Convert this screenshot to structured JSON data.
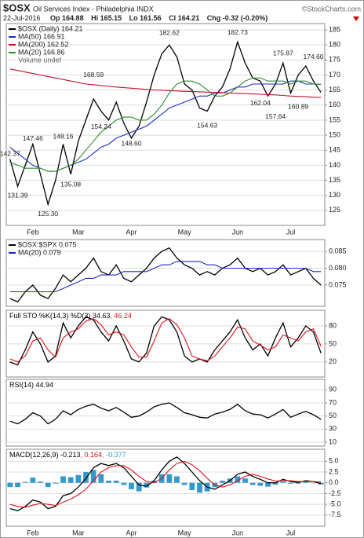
{
  "header": {
    "symbol": "$OSX",
    "name": "Oil Services Index - Philadelphia INDX",
    "source": "©StockCharts.com",
    "date": "22-Jul-2016",
    "quote": [
      "Op 164.88",
      "Hi 165.15",
      "Lo 161.56",
      "Cl 164.21",
      "Chg -0.32 (-0.20%)"
    ]
  },
  "chart_data": [
    {
      "type": "line",
      "legend": "stacked",
      "grid": true,
      "volume_label": "Volume undef",
      "categories": [
        null,
        null,
        null,
        "Feb",
        null,
        null,
        null,
        null,
        null,
        "Mar",
        null,
        null,
        null,
        null,
        null,
        null,
        "Apr",
        null,
        null,
        null,
        null,
        null,
        null,
        "May",
        null,
        null,
        null,
        null,
        null,
        null,
        "Jun",
        null,
        null,
        null,
        null,
        null,
        null,
        "Jul",
        null,
        null,
        null,
        null
      ],
      "ylim": [
        120,
        187.1
      ],
      "yticks": [
        125,
        130,
        135,
        140,
        145,
        150,
        155,
        160,
        165,
        170,
        175,
        180,
        185
      ],
      "series": [
        {
          "name": "$OSX (Daily) 164.21",
          "color": "#000000",
          "values": [
            142,
            133,
            140,
            147,
            137,
            127,
            135,
            147,
            137,
            148,
            155,
            162,
            158,
            155,
            161,
            154,
            149,
            153,
            161,
            170,
            177,
            180,
            176,
            167,
            165,
            159,
            158,
            163,
            166,
            172,
            181,
            174,
            169,
            168,
            163,
            167,
            174,
            164,
            170,
            173,
            168,
            164.21
          ]
        },
        {
          "name": "MA(50) 166.91",
          "color": "#1a2fb5",
          "values": [
            146,
            144,
            142,
            140,
            139,
            138,
            138,
            139,
            140,
            141,
            142,
            144,
            146,
            147,
            149,
            150,
            151,
            152,
            153,
            155,
            157,
            159,
            160,
            161,
            162,
            163,
            163,
            164,
            164,
            165,
            166,
            166,
            167,
            167,
            167,
            167,
            167,
            168,
            168,
            167,
            167,
            166.91
          ]
        },
        {
          "name": "MA(200) 162.52",
          "color": "#c0102a",
          "values": [
            172,
            171.5,
            171,
            170.5,
            170,
            169.5,
            169,
            168.5,
            168,
            167.5,
            167,
            166.8,
            166.5,
            166.2,
            166,
            165.8,
            165.6,
            165.4,
            165.2,
            165,
            164.9,
            164.8,
            164.7,
            164.6,
            164.5,
            164.4,
            164.3,
            164.2,
            164.1,
            164,
            163.9,
            163.8,
            163.7,
            163.6,
            163.5,
            163.4,
            163.2,
            163,
            162.9,
            162.8,
            162.6,
            162.52
          ]
        },
        {
          "name": "MA(20) 166.86",
          "color": "#2e8b2e",
          "values": [
            141,
            140,
            139,
            139,
            139,
            138,
            138,
            139,
            140,
            142,
            145,
            148,
            151,
            153,
            155,
            156,
            156,
            155,
            155,
            157,
            160,
            164,
            167,
            168,
            168,
            167,
            165,
            163,
            163,
            164,
            166,
            168,
            169,
            169,
            168,
            168,
            168,
            167,
            168,
            168,
            167,
            166.86
          ]
        }
      ],
      "annotations": [
        {
          "value": 142.37,
          "label": "142.37"
        },
        {
          "value": 131.39,
          "label": "131.39"
        },
        {
          "value": 147.46,
          "label": "147.46"
        },
        {
          "value": 125.3,
          "label": "125.30"
        },
        {
          "value": 148.16,
          "label": "148.16"
        },
        {
          "value": 135.08,
          "label": "135.08"
        },
        {
          "value": 168.59,
          "label": "168.59"
        },
        {
          "value": 154.24,
          "label": "154.24"
        },
        {
          "value": 148.6,
          "label": "148.60"
        },
        {
          "value": 182.62,
          "label": "182.62"
        },
        {
          "value": 154.63,
          "label": "154.63"
        },
        {
          "value": 182.73,
          "label": "182.73"
        },
        {
          "value": 175.87,
          "label": "175.87"
        },
        {
          "value": 162.04,
          "label": "162.04"
        },
        {
          "value": 157.64,
          "label": "157.64"
        },
        {
          "value": 160.89,
          "label": "160.89"
        },
        {
          "value": 174.6,
          "label": "174.60"
        }
      ]
    },
    {
      "type": "line",
      "legend": "stacked",
      "grid": true,
      "ylim": [
        0.0687,
        0.0885
      ],
      "yticks": [
        {
          "value": 0.085,
          "label": "0.085"
        },
        {
          "value": 0.08,
          "label": "0.080"
        },
        {
          "value": 0.075,
          "label": "0.075"
        }
      ],
      "series": [
        {
          "name": "$OSX:$SPX 0.075",
          "color": "#000000",
          "values": [
            0.071,
            0.07,
            0.073,
            0.075,
            0.072,
            0.071,
            0.074,
            0.078,
            0.076,
            0.078,
            0.08,
            0.083,
            0.079,
            0.078,
            0.081,
            0.077,
            0.076,
            0.078,
            0.08,
            0.083,
            0.085,
            0.086,
            0.083,
            0.081,
            0.08,
            0.078,
            0.079,
            0.078,
            0.08,
            0.081,
            0.083,
            0.08,
            0.079,
            0.08,
            0.078,
            0.079,
            0.081,
            0.078,
            0.079,
            0.08,
            0.077,
            0.075
          ]
        },
        {
          "name": "MA(20) 0.079",
          "color": "#1a2fb5",
          "values": [
            0.073,
            0.073,
            0.073,
            0.073,
            0.073,
            0.073,
            0.073,
            0.074,
            0.075,
            0.076,
            0.077,
            0.077,
            0.078,
            0.078,
            0.078,
            0.079,
            0.079,
            0.079,
            0.079,
            0.08,
            0.081,
            0.081,
            0.082,
            0.082,
            0.082,
            0.082,
            0.081,
            0.081,
            0.08,
            0.08,
            0.08,
            0.08,
            0.08,
            0.08,
            0.08,
            0.08,
            0.08,
            0.08,
            0.08,
            0.08,
            0.079,
            0.079
          ]
        }
      ]
    },
    {
      "type": "line",
      "legend": "inline",
      "grid": true,
      "ylim": [
        -5,
        106
      ],
      "yticks": [
        80,
        50,
        20
      ],
      "series": [
        {
          "name": "Full STO %K(14,3) %D(3) 34.63",
          "color": "#000000",
          "values": [
            20,
            15,
            40,
            70,
            50,
            20,
            30,
            85,
            60,
            80,
            95,
            90,
            70,
            55,
            80,
            55,
            25,
            20,
            35,
            80,
            95,
            90,
            70,
            30,
            20,
            25,
            20,
            40,
            55,
            70,
            90,
            60,
            40,
            50,
            30,
            60,
            85,
            45,
            60,
            80,
            70,
            34.63
          ]
        },
        {
          "name": ", 46.24",
          "color": "#e0101a",
          "values": [
            25,
            20,
            30,
            55,
            60,
            40,
            28,
            60,
            70,
            75,
            88,
            92,
            82,
            65,
            70,
            65,
            45,
            28,
            28,
            55,
            85,
            92,
            82,
            60,
            30,
            25,
            22,
            30,
            45,
            60,
            78,
            75,
            55,
            48,
            40,
            45,
            65,
            60,
            55,
            70,
            75,
            46.24
          ]
        }
      ]
    },
    {
      "type": "line",
      "legend": "inline",
      "grid": true,
      "ylim": [
        4,
        106
      ],
      "yticks": [
        90,
        70,
        50,
        30,
        10
      ],
      "series": [
        {
          "name": "RSI(14) 44.94",
          "color": "#000000",
          "values": [
            42,
            38,
            45,
            55,
            50,
            38,
            45,
            58,
            52,
            60,
            65,
            68,
            62,
            58,
            63,
            56,
            48,
            50,
            56,
            64,
            68,
            70,
            63,
            55,
            52,
            48,
            47,
            53,
            56,
            60,
            68,
            58,
            53,
            52,
            47,
            53,
            60,
            48,
            53,
            57,
            52,
            44.94
          ]
        }
      ]
    },
    {
      "type": "line",
      "legend": "inline",
      "grid": true,
      "categories": [
        null,
        null,
        null,
        "Feb",
        null,
        null,
        null,
        null,
        null,
        "Mar",
        null,
        null,
        null,
        null,
        null,
        null,
        "Apr",
        null,
        null,
        null,
        null,
        null,
        null,
        "May",
        null,
        null,
        null,
        null,
        null,
        null,
        "Jun",
        null,
        null,
        null,
        null,
        null,
        null,
        "Jul",
        null,
        null,
        null,
        null
      ],
      "ylim": [
        -10.1,
        7.8
      ],
      "yticks": [
        {
          "value": 5,
          "label": "5.0"
        },
        {
          "value": 2.5,
          "label": "2.5"
        },
        {
          "value": 0,
          "label": "0.0"
        },
        {
          "value": -2.5,
          "label": "-2.5"
        },
        {
          "value": -5,
          "label": "-5.0"
        },
        {
          "value": -7.5,
          "label": "-7.5"
        }
      ],
      "series": [
        {
          "name": "MACD(12,26,9) -0.213",
          "color": "#000000",
          "values": [
            -6,
            -6.5,
            -5.5,
            -4,
            -4.5,
            -6,
            -5.5,
            -3,
            -2.5,
            -1,
            1,
            3.5,
            4.5,
            4,
            4.5,
            3.5,
            1.5,
            -0.5,
            -0.8,
            0.5,
            3,
            5,
            6,
            4.5,
            2.5,
            0.5,
            -1,
            -1.5,
            -0.5,
            0.5,
            2,
            2.5,
            1.5,
            0.8,
            0,
            0,
            0.8,
            0.3,
            0.1,
            0.5,
            0.3,
            -0.213
          ]
        },
        {
          "name": ", 0.164",
          "color": "#e0101a",
          "values": [
            -5,
            -5.5,
            -5.7,
            -5.2,
            -4.8,
            -5,
            -5.3,
            -4.5,
            -3.8,
            -2.8,
            -1.5,
            0.5,
            2.5,
            3.5,
            4,
            4,
            3,
            1.5,
            0.3,
            0,
            1,
            3,
            4.5,
            5,
            4.2,
            2.8,
            1,
            -0.5,
            -1,
            -0.5,
            0.5,
            1.5,
            2,
            1.5,
            0.9,
            0.4,
            0.5,
            0.5,
            0.3,
            0.3,
            0.3,
            0.164
          ]
        },
        {
          "name": ", -0.377",
          "color": "#3399cc",
          "type": "bar",
          "values": [
            -1,
            -1,
            0.2,
            1.2,
            0.3,
            -1,
            -0.2,
            1.5,
            1.3,
            1.8,
            2.5,
            3,
            2,
            0.5,
            0.5,
            -0.5,
            -1.5,
            -2,
            -1.1,
            0.5,
            2,
            2,
            1.5,
            -0.5,
            -1.7,
            -2.3,
            -2,
            -1,
            0.5,
            1,
            1.5,
            1,
            -0.5,
            -0.7,
            -0.9,
            -0.4,
            0.3,
            -0.2,
            -0.2,
            0.2,
            0,
            -0.377
          ]
        }
      ]
    }
  ]
}
